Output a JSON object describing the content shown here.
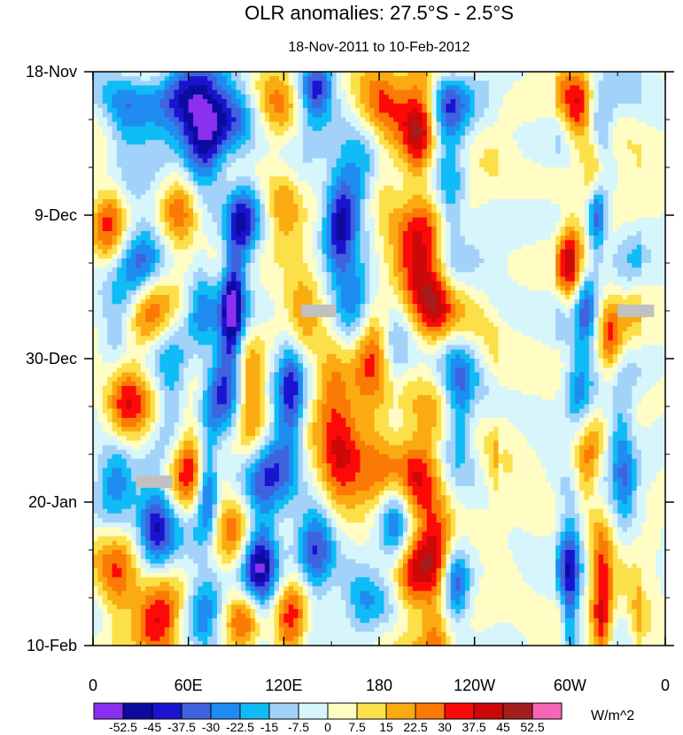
{
  "chart_data": {
    "type": "heatmap",
    "title": "OLR anomalies: 27.5°S - 2.5°S",
    "subtitle": "18-Nov-2011 to 10-Feb-2012",
    "x_ticks": [
      {
        "lon": 0,
        "label": "0"
      },
      {
        "lon": 60,
        "label": "60E"
      },
      {
        "lon": 120,
        "label": "120E"
      },
      {
        "lon": 180,
        "label": "180"
      },
      {
        "lon": 240,
        "label": "120W"
      },
      {
        "lon": 300,
        "label": "60W"
      },
      {
        "lon": 360,
        "label": "0"
      }
    ],
    "x_range": [
      0,
      360
    ],
    "y_ticks": [
      {
        "day": 0,
        "label": "18-Nov"
      },
      {
        "day": 21,
        "label": "9-Dec"
      },
      {
        "day": 42,
        "label": "30-Dec"
      },
      {
        "day": 63,
        "label": "20-Jan"
      },
      {
        "day": 84,
        "label": "10-Feb"
      }
    ],
    "y_range_days": [
      0,
      84
    ],
    "colorbar": {
      "units": "W/m^2",
      "levels": [
        "-52.5",
        "-45",
        "-37.5",
        "-30",
        "-22.5",
        "-15",
        "-7.5",
        "0",
        "7.5",
        "15",
        "22.5",
        "30",
        "37.5",
        "45",
        "52.5"
      ],
      "colors": [
        "#8b2ff0",
        "#0b0b9e",
        "#1a14d0",
        "#3f63de",
        "#1e8cf0",
        "#10bcf5",
        "#a2d2f9",
        "#d6f6fb",
        "#fffcc4",
        "#fce04a",
        "#fbab12",
        "#fb7a06",
        "#fb0a08",
        "#cc0808",
        "#a41e1e",
        "#f766b6"
      ]
    },
    "missing_data_color": "#c0c0c0",
    "missing_data_patches": [
      {
        "lon_start": 131,
        "lon_end": 153,
        "day": 35
      },
      {
        "lon_start": 330,
        "lon_end": 353,
        "day": 35
      },
      {
        "lon_start": 27,
        "lon_end": 50,
        "day": 60
      }
    ],
    "anomaly_features": [
      {
        "lon": 20,
        "day": 8,
        "sx": 11,
        "sy": 5,
        "v": -25,
        "tilt": 0.3
      },
      {
        "lon": 58,
        "day": 4,
        "sx": 14,
        "sy": 4,
        "v": -40,
        "tilt": 0.4
      },
      {
        "lon": 70,
        "day": 10,
        "sx": 10,
        "sy": 5,
        "v": -45,
        "tilt": 0.5
      },
      {
        "lon": 90,
        "day": 6,
        "sx": 12,
        "sy": 4,
        "v": -30,
        "tilt": 0.3
      },
      {
        "lon": 140,
        "day": 3,
        "sx": 8,
        "sy": 4,
        "v": -40,
        "tilt": 0.4
      },
      {
        "lon": 170,
        "day": 14,
        "sx": 10,
        "sy": 5,
        "v": -38,
        "tilt": 0.5
      },
      {
        "lon": 222,
        "day": 6,
        "sx": 10,
        "sy": 4,
        "v": -35,
        "tilt": 0.4
      },
      {
        "lon": 318,
        "day": 9,
        "sx": 6,
        "sy": 4,
        "v": -30,
        "tilt": 0.3
      },
      {
        "lon": 115,
        "day": 5,
        "sx": 12,
        "sy": 4,
        "v": 25,
        "tilt": 0.4
      },
      {
        "lon": 180,
        "day": 5,
        "sx": 12,
        "sy": 4,
        "v": 35,
        "tilt": 0.5
      },
      {
        "lon": 205,
        "day": 12,
        "sx": 8,
        "sy": 5,
        "v": 30,
        "tilt": 0.4
      },
      {
        "lon": 207,
        "day": 5,
        "sx": 8,
        "sy": 6,
        "v": 25,
        "tilt": 0.3
      },
      {
        "lon": 305,
        "day": 6,
        "sx": 7,
        "sy": 4,
        "v": 35,
        "tilt": 0.3
      },
      {
        "lon": 315,
        "day": 14,
        "sx": 5,
        "sy": 4,
        "v": 35,
        "tilt": 0.2
      },
      {
        "lon": 10,
        "day": 22,
        "sx": 8,
        "sy": 5,
        "v": 30,
        "tilt": 0.4
      },
      {
        "lon": 30,
        "day": 28,
        "sx": 10,
        "sy": 6,
        "v": -28,
        "tilt": 0.4
      },
      {
        "lon": 55,
        "day": 20,
        "sx": 8,
        "sy": 5,
        "v": 25,
        "tilt": 0.4
      },
      {
        "lon": 95,
        "day": 22,
        "sx": 7,
        "sy": 5,
        "v": -35,
        "tilt": 0.5
      },
      {
        "lon": 120,
        "day": 20,
        "sx": 7,
        "sy": 4,
        "v": 20,
        "tilt": 0.3
      },
      {
        "lon": 155,
        "day": 22,
        "sx": 7,
        "sy": 6,
        "v": -38,
        "tilt": 0.6
      },
      {
        "lon": 203,
        "day": 29,
        "sx": 10,
        "sy": 5,
        "v": 38,
        "tilt": 0.3
      },
      {
        "lon": 180,
        "day": 18,
        "sx": 10,
        "sy": 4,
        "v": 25,
        "tilt": 0.4
      },
      {
        "lon": 225,
        "day": 20,
        "sx": 6,
        "sy": 6,
        "v": -22,
        "tilt": 0.3
      },
      {
        "lon": 317,
        "day": 21,
        "sx": 4,
        "sy": 4,
        "v": -40,
        "tilt": 0.3
      },
      {
        "lon": 300,
        "day": 28,
        "sx": 5,
        "sy": 5,
        "v": 30,
        "tilt": 0.2
      },
      {
        "lon": 15,
        "day": 38,
        "sx": 8,
        "sy": 5,
        "v": -25,
        "tilt": 0.4
      },
      {
        "lon": 35,
        "day": 37,
        "sx": 9,
        "sy": 5,
        "v": 25,
        "tilt": 0.3
      },
      {
        "lon": 67,
        "day": 35,
        "sx": 6,
        "sy": 5,
        "v": -20,
        "tilt": 0.4
      },
      {
        "lon": 88,
        "day": 35,
        "sx": 5,
        "sy": 7,
        "v": -45,
        "tilt": 0.6
      },
      {
        "lon": 130,
        "day": 37,
        "sx": 8,
        "sy": 6,
        "v": 25,
        "tilt": 0.5
      },
      {
        "lon": 165,
        "day": 34,
        "sx": 10,
        "sy": 5,
        "v": -32,
        "tilt": 0.6
      },
      {
        "lon": 175,
        "day": 38,
        "sx": 8,
        "sy": 5,
        "v": 30,
        "tilt": 0.5
      },
      {
        "lon": 190,
        "day": 42,
        "sx": 7,
        "sy": 5,
        "v": -22,
        "tilt": 0.4
      },
      {
        "lon": 215,
        "day": 35,
        "sx": 8,
        "sy": 6,
        "v": 28,
        "tilt": 0.5
      },
      {
        "lon": 310,
        "day": 35,
        "sx": 5,
        "sy": 4,
        "v": -30,
        "tilt": 0.3
      },
      {
        "lon": 325,
        "day": 40,
        "sx": 5,
        "sy": 5,
        "v": 25,
        "tilt": 0.3
      },
      {
        "lon": 20,
        "day": 47,
        "sx": 9,
        "sy": 6,
        "v": 35,
        "tilt": 0.3
      },
      {
        "lon": 50,
        "day": 48,
        "sx": 8,
        "sy": 5,
        "v": -28,
        "tilt": 0.4
      },
      {
        "lon": 80,
        "day": 44,
        "sx": 8,
        "sy": 5,
        "v": -40,
        "tilt": 0.6
      },
      {
        "lon": 100,
        "day": 48,
        "sx": 7,
        "sy": 5,
        "v": 28,
        "tilt": 0.4
      },
      {
        "lon": 125,
        "day": 47,
        "sx": 6,
        "sy": 7,
        "v": -38,
        "tilt": 0.5
      },
      {
        "lon": 150,
        "day": 45,
        "sx": 8,
        "sy": 5,
        "v": 25,
        "tilt": 0.5
      },
      {
        "lon": 178,
        "day": 54,
        "sx": 14,
        "sy": 6,
        "v": 30,
        "tilt": 0.3
      },
      {
        "lon": 230,
        "day": 50,
        "sx": 7,
        "sy": 5,
        "v": -35,
        "tilt": 0.4
      },
      {
        "lon": 305,
        "day": 48,
        "sx": 6,
        "sy": 5,
        "v": -25,
        "tilt": 0.3
      },
      {
        "lon": 330,
        "day": 53,
        "sx": 6,
        "sy": 5,
        "v": -22,
        "tilt": 0.2
      },
      {
        "lon": 15,
        "day": 58,
        "sx": 8,
        "sy": 5,
        "v": -25,
        "tilt": 0.3
      },
      {
        "lon": 60,
        "day": 55,
        "sx": 9,
        "sy": 6,
        "v": 30,
        "tilt": 0.4
      },
      {
        "lon": 72,
        "day": 61,
        "sx": 5,
        "sy": 5,
        "v": -45,
        "tilt": 0.4
      },
      {
        "lon": 115,
        "day": 55,
        "sx": 10,
        "sy": 5,
        "v": -28,
        "tilt": 0.5
      },
      {
        "lon": 155,
        "day": 56,
        "sx": 9,
        "sy": 5,
        "v": 32,
        "tilt": 0.4
      },
      {
        "lon": 205,
        "day": 60,
        "sx": 10,
        "sy": 6,
        "v": 30,
        "tilt": 0.4
      },
      {
        "lon": 260,
        "day": 56,
        "sx": 8,
        "sy": 5,
        "v": 20,
        "tilt": 0.3
      },
      {
        "lon": 310,
        "day": 58,
        "sx": 6,
        "sy": 4,
        "v": 28,
        "tilt": 0.3
      },
      {
        "lon": 335,
        "day": 60,
        "sx": 5,
        "sy": 5,
        "v": -20,
        "tilt": 0.2
      },
      {
        "lon": 40,
        "day": 66,
        "sx": 8,
        "sy": 5,
        "v": -40,
        "tilt": 0.4
      },
      {
        "lon": 105,
        "day": 71,
        "sx": 8,
        "sy": 6,
        "v": -52,
        "tilt": 0.3
      },
      {
        "lon": 85,
        "day": 68,
        "sx": 10,
        "sy": 5,
        "v": 20,
        "tilt": 0.4
      },
      {
        "lon": 140,
        "day": 71,
        "sx": 8,
        "sy": 5,
        "v": -35,
        "tilt": 0.4
      },
      {
        "lon": 190,
        "day": 66,
        "sx": 7,
        "sy": 5,
        "v": -30,
        "tilt": 0.4
      },
      {
        "lon": 215,
        "day": 70,
        "sx": 8,
        "sy": 5,
        "v": 35,
        "tilt": 0.4
      },
      {
        "lon": 228,
        "day": 75,
        "sx": 6,
        "sy": 4,
        "v": -35,
        "tilt": 0.3
      },
      {
        "lon": 300,
        "day": 68,
        "sx": 6,
        "sy": 5,
        "v": -25,
        "tilt": 0.3
      },
      {
        "lon": 320,
        "day": 71,
        "sx": 5,
        "sy": 5,
        "v": 25,
        "tilt": 0.2
      },
      {
        "lon": 40,
        "day": 80,
        "sx": 11,
        "sy": 4,
        "v": 42,
        "tilt": 0.3
      },
      {
        "lon": 15,
        "day": 77,
        "sx": 8,
        "sy": 5,
        "v": 25,
        "tilt": 0.3
      },
      {
        "lon": 70,
        "day": 79,
        "sx": 9,
        "sy": 5,
        "v": -30,
        "tilt": 0.4
      },
      {
        "lon": 95,
        "day": 80,
        "sx": 8,
        "sy": 4,
        "v": 25,
        "tilt": 0.3
      },
      {
        "lon": 125,
        "day": 81,
        "sx": 8,
        "sy": 4,
        "v": 42,
        "tilt": 0.3
      },
      {
        "lon": 170,
        "day": 79,
        "sx": 10,
        "sy": 4,
        "v": -25,
        "tilt": 0.4
      },
      {
        "lon": 200,
        "day": 76,
        "sx": 8,
        "sy": 5,
        "v": 25,
        "tilt": 0.4
      },
      {
        "lon": 215,
        "day": 82,
        "sx": 7,
        "sy": 4,
        "v": 25,
        "tilt": 0.3
      },
      {
        "lon": 320,
        "day": 81,
        "sx": 5,
        "sy": 4,
        "v": 40,
        "tilt": 0.2
      },
      {
        "lon": 300,
        "day": 78,
        "sx": 4,
        "sy": 6,
        "v": -30,
        "tilt": 0.3
      },
      {
        "lon": 345,
        "day": 80,
        "sx": 6,
        "sy": 4,
        "v": 20,
        "tilt": 0.2
      }
    ]
  }
}
